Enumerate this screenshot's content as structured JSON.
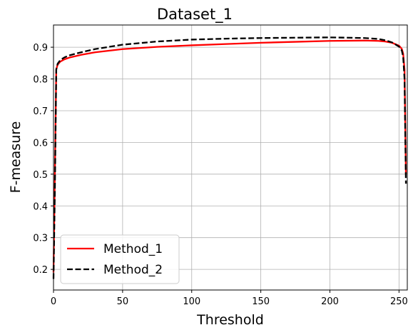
{
  "chart_data": {
    "type": "line",
    "title": "Dataset_1",
    "xlabel": "Threshold",
    "ylabel": "F-measure",
    "xlim": [
      0,
      256
    ],
    "ylim": [
      0.135,
      0.97
    ],
    "xticks": [
      0,
      50,
      100,
      150,
      200,
      250
    ],
    "yticks": [
      0.2,
      0.3,
      0.4,
      0.5,
      0.6,
      0.7,
      0.8,
      0.9
    ],
    "grid": true,
    "legend": "bottom-left",
    "series": [
      {
        "name": "Method_1",
        "color": "#ff0000",
        "style": "solid",
        "x": [
          0,
          1,
          2,
          3,
          5,
          8,
          12,
          20,
          30,
          50,
          75,
          100,
          125,
          150,
          175,
          200,
          225,
          235,
          240,
          245,
          250,
          252,
          253,
          254,
          255
        ],
        "y": [
          0.19,
          0.5,
          0.83,
          0.845,
          0.855,
          0.862,
          0.868,
          0.876,
          0.884,
          0.894,
          0.901,
          0.906,
          0.91,
          0.914,
          0.917,
          0.92,
          0.921,
          0.92,
          0.918,
          0.914,
          0.905,
          0.895,
          0.88,
          0.83,
          0.5
        ]
      },
      {
        "name": "Method_2",
        "color": "#000000",
        "style": "dashed",
        "x": [
          0,
          1,
          2,
          3,
          5,
          8,
          12,
          20,
          30,
          50,
          75,
          100,
          125,
          150,
          175,
          200,
          225,
          235,
          240,
          245,
          250,
          252,
          253,
          254,
          255
        ],
        "y": [
          0.17,
          0.45,
          0.83,
          0.848,
          0.86,
          0.868,
          0.875,
          0.884,
          0.894,
          0.908,
          0.918,
          0.924,
          0.927,
          0.929,
          0.93,
          0.931,
          0.929,
          0.926,
          0.922,
          0.915,
          0.902,
          0.89,
          0.87,
          0.8,
          0.47
        ]
      }
    ]
  }
}
